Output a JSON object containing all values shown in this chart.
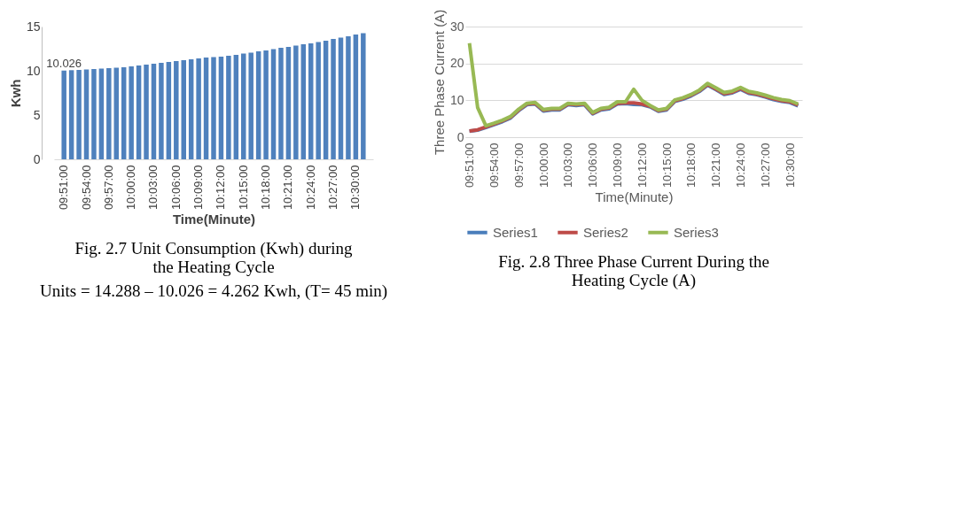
{
  "chart_data": [
    {
      "type": "bar",
      "title": "Fig. 2.7 Unit Consumption (Kwh) during the Heating Cycle",
      "xlabel": "Time(Minute)",
      "ylabel": "Kwh",
      "categories": [
        "09:51:00",
        null,
        null,
        "09:54:00",
        null,
        null,
        "09:57:00",
        null,
        null,
        "10:00:00",
        null,
        null,
        "10:03:00",
        null,
        null,
        "10:06:00",
        null,
        null,
        "10:09:00",
        null,
        null,
        "10:12:00",
        null,
        null,
        "10:15:00",
        null,
        null,
        "10:18:00",
        null,
        null,
        "10:21:00",
        null,
        null,
        "10:24:00",
        null,
        null,
        "10:27:00",
        null,
        null,
        "10:30:00",
        null
      ],
      "values": [
        10.026,
        10.07,
        10.1,
        10.15,
        10.2,
        10.25,
        10.3,
        10.35,
        10.4,
        10.5,
        10.6,
        10.7,
        10.8,
        10.9,
        11.0,
        11.1,
        11.2,
        11.3,
        11.4,
        11.5,
        11.55,
        11.6,
        11.7,
        11.8,
        11.95,
        12.05,
        12.2,
        12.3,
        12.45,
        12.6,
        12.7,
        12.85,
        13.0,
        13.1,
        13.25,
        13.4,
        13.6,
        13.75,
        13.9,
        14.1,
        14.25
      ],
      "value_labels": [
        "10.026",
        null,
        null,
        null,
        null,
        null,
        null,
        null,
        null,
        null,
        null,
        null,
        null,
        null,
        null,
        null,
        null,
        null,
        null,
        null,
        null,
        null,
        null,
        null,
        null,
        null,
        null,
        null,
        null,
        null,
        null,
        null,
        null,
        null,
        null,
        null,
        null,
        null,
        null,
        null,
        null
      ],
      "color": "#4f81bd",
      "ylim": [
        0,
        15
      ],
      "yticks": [
        0,
        5,
        10,
        15
      ],
      "grid": false,
      "annotations": [
        "Units = 14.288 – 10.026 = 4.262 Kwh, (T= 45 min)"
      ]
    },
    {
      "type": "line",
      "title": "Fig. 2.8 Three Phase Current During the Heating Cycle (A)",
      "xlabel": "Time(Minute)",
      "ylabel": "Three Phase Current (A)",
      "categories": [
        "09:51:00",
        null,
        null,
        "09:54:00",
        null,
        null,
        "09:57:00",
        null,
        null,
        "10:00:00",
        null,
        null,
        "10:03:00",
        null,
        null,
        "10:06:00",
        null,
        null,
        "10:09:00",
        null,
        null,
        "10:12:00",
        null,
        null,
        "10:15:00",
        null,
        null,
        "10:18:00",
        null,
        null,
        "10:21:00",
        null,
        null,
        "10:24:00",
        null,
        null,
        "10:27:00",
        null,
        null,
        "10:30:00",
        null
      ],
      "series": [
        {
          "name": "Series1",
          "color": "#4a7ebb",
          "values": [
            1.6,
            1.9,
            2.6,
            3.4,
            4.2,
            5.2,
            7.2,
            8.8,
            9.0,
            7.1,
            7.4,
            7.4,
            8.8,
            8.6,
            8.8,
            6.3,
            7.4,
            7.7,
            9.0,
            9.1,
            8.9,
            8.8,
            8.2,
            7.0,
            7.4,
            9.7,
            10.3,
            11.2,
            12.4,
            14.1,
            12.9,
            11.6,
            12.0,
            13.0,
            11.9,
            11.5,
            10.9,
            10.2,
            9.7,
            9.4,
            8.5
          ]
        },
        {
          "name": "Series2",
          "color": "#be4b48",
          "values": [
            1.7,
            2.0,
            2.8,
            3.6,
            4.4,
            5.4,
            7.4,
            9.0,
            9.2,
            7.3,
            7.6,
            7.6,
            9.0,
            8.8,
            9.0,
            6.5,
            7.6,
            7.9,
            9.2,
            9.3,
            9.3,
            9.0,
            8.4,
            7.2,
            7.6,
            9.9,
            10.5,
            11.4,
            12.6,
            14.3,
            13.1,
            11.8,
            12.2,
            13.2,
            12.1,
            11.7,
            11.1,
            10.4,
            9.9,
            9.6,
            8.7
          ]
        },
        {
          "name": "Series3",
          "color": "#98b954",
          "values": [
            25.5,
            8,
            3.1,
            3.8,
            4.6,
            5.6,
            7.6,
            9.2,
            9.4,
            7.5,
            7.8,
            7.8,
            9.2,
            9.0,
            9.2,
            6.7,
            7.8,
            8.1,
            9.6,
            9.6,
            13.0,
            10.0,
            8.6,
            7.4,
            7.8,
            10.1,
            10.7,
            11.6,
            12.8,
            14.6,
            13.4,
            12.1,
            12.5,
            13.5,
            12.4,
            12.0,
            11.4,
            10.7,
            10.2,
            9.9,
            9.0
          ]
        }
      ],
      "ylim": [
        0,
        30
      ],
      "yticks": [
        0,
        10,
        20,
        30
      ],
      "grid": "y",
      "legend": "bottom",
      "marker": "none",
      "line_style": "solid"
    }
  ]
}
